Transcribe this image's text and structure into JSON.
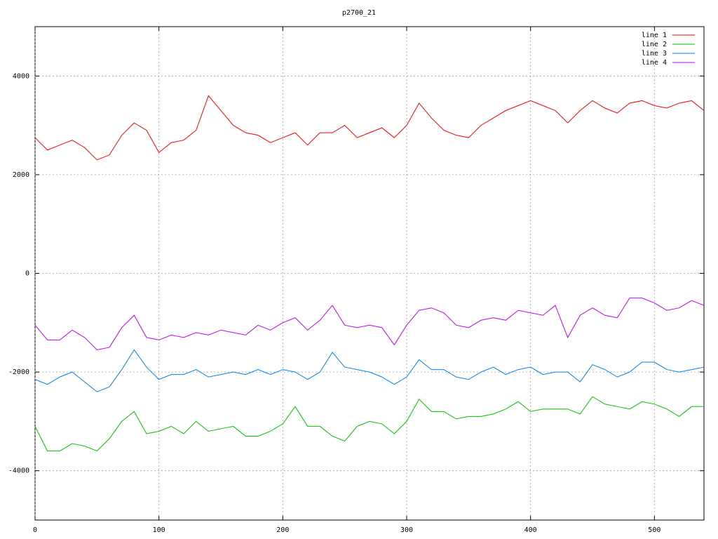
{
  "chart_data": {
    "type": "line",
    "title": "p2700_21",
    "x": [
      0,
      10,
      20,
      30,
      40,
      50,
      60,
      70,
      80,
      90,
      100,
      110,
      120,
      130,
      140,
      150,
      160,
      170,
      180,
      190,
      200,
      210,
      220,
      230,
      240,
      250,
      260,
      270,
      280,
      290,
      300,
      310,
      320,
      330,
      340,
      350,
      360,
      370,
      380,
      390,
      400,
      410,
      420,
      430,
      440,
      450,
      460,
      470,
      480,
      490,
      500,
      510,
      520,
      530,
      540
    ],
    "series": [
      {
        "name": "line 1",
        "color": "#ff0000",
        "values": [
          2750,
          2500,
          2600,
          2700,
          2550,
          2300,
          2400,
          2800,
          3050,
          2900,
          2450,
          2650,
          2700,
          2900,
          3600,
          3300,
          3000,
          2850,
          2800,
          2650,
          2750,
          2850,
          2600,
          2850,
          2850,
          3000,
          2750,
          2850,
          2950,
          2750,
          3000,
          3450,
          3150,
          2900,
          2800,
          2750,
          3000,
          3150,
          3300,
          3400,
          3500,
          3400,
          3300,
          3050,
          3300,
          3500,
          3350,
          3250,
          3450,
          3500,
          3400,
          3350,
          3450,
          3500,
          3300
        ]
      },
      {
        "name": "line 2",
        "color": "#00c000",
        "values": [
          -3100,
          -3600,
          -3600,
          -3450,
          -3500,
          -3600,
          -3350,
          -3000,
          -2800,
          -3250,
          -3200,
          -3100,
          -3250,
          -3000,
          -3200,
          -3150,
          -3100,
          -3300,
          -3300,
          -3200,
          -3050,
          -2700,
          -3100,
          -3100,
          -3300,
          -3400,
          -3100,
          -3000,
          -3050,
          -3250,
          -3000,
          -2550,
          -2800,
          -2800,
          -2950,
          -2900,
          -2900,
          -2850,
          -2750,
          -2600,
          -2800,
          -2750,
          -2750,
          -2750,
          -2850,
          -2500,
          -2650,
          -2700,
          -2750,
          -2600,
          -2650,
          -2750,
          -2900,
          -2700,
          -2700
        ]
      },
      {
        "name": "line 3",
        "color": "#0080ff",
        "values": [
          -2150,
          -2250,
          -2100,
          -2000,
          -2200,
          -2400,
          -2300,
          -1950,
          -1550,
          -1900,
          -2150,
          -2050,
          -2050,
          -1950,
          -2100,
          -2050,
          -2000,
          -2050,
          -1950,
          -2050,
          -1950,
          -2000,
          -2150,
          -2000,
          -1600,
          -1900,
          -1950,
          -2000,
          -2100,
          -2250,
          -2100,
          -1750,
          -1950,
          -1950,
          -2100,
          -2150,
          -2000,
          -1900,
          -2050,
          -1950,
          -1900,
          -2050,
          -2000,
          -2000,
          -2200,
          -1850,
          -1950,
          -2100,
          -2000,
          -1800,
          -1800,
          -1950,
          -2000,
          -1950,
          -1900
        ]
      },
      {
        "name": "line 4",
        "color": "#c000ff",
        "values": [
          -1050,
          -1350,
          -1350,
          -1150,
          -1300,
          -1550,
          -1500,
          -1100,
          -850,
          -1300,
          -1350,
          -1250,
          -1300,
          -1200,
          -1250,
          -1150,
          -1200,
          -1250,
          -1050,
          -1150,
          -1000,
          -900,
          -1150,
          -950,
          -650,
          -1050,
          -1100,
          -1050,
          -1100,
          -1450,
          -1050,
          -750,
          -700,
          -800,
          -1050,
          -1100,
          -950,
          -900,
          -950,
          -750,
          -800,
          -850,
          -650,
          -1300,
          -850,
          -700,
          -850,
          -900,
          -500,
          -500,
          -600,
          -750,
          -700,
          -550,
          -650
        ]
      }
    ],
    "xlim": [
      0,
      540
    ],
    "xticks": [
      0,
      100,
      200,
      300,
      400,
      500
    ],
    "ylim": [
      -5000,
      5000
    ],
    "yticks": [
      -4000,
      -2000,
      0,
      2000,
      4000
    ],
    "grid": true,
    "legend": "top-right"
  }
}
